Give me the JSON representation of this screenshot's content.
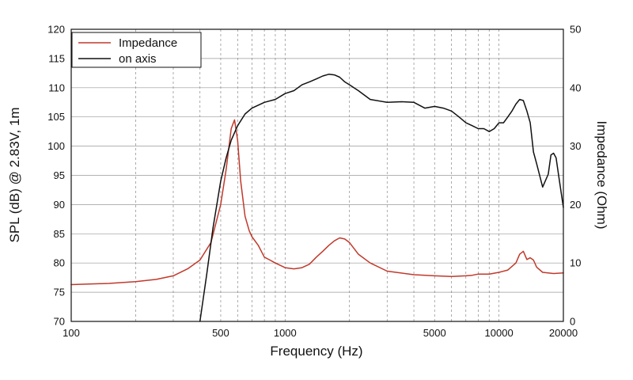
{
  "chart_data": {
    "type": "line",
    "xlabel": "Frequency (Hz)",
    "ylabel": "SPL (dB) @ 2.83V, 1m",
    "y2label": "Impedance (Ohm)",
    "xscale": "log",
    "xlim": [
      100,
      20000
    ],
    "ylim": [
      70,
      120
    ],
    "y2lim": [
      0,
      50
    ],
    "grid": true,
    "legend_position": "top-left",
    "x_tick_labels": [
      "100",
      "500",
      "1000",
      "5000",
      "10000",
      "20000"
    ],
    "x_tick_values": [
      100,
      500,
      1000,
      5000,
      10000,
      20000
    ],
    "y_ticks": [
      70,
      75,
      80,
      85,
      90,
      95,
      100,
      105,
      110,
      115,
      120
    ],
    "y2_ticks": [
      0,
      10,
      20,
      30,
      40,
      50
    ],
    "series": [
      {
        "name": "Impedance",
        "axis": "right",
        "color": "#c0392b",
        "x": [
          100,
          150,
          200,
          250,
          300,
          350,
          400,
          450,
          500,
          530,
          560,
          580,
          600,
          620,
          650,
          680,
          700,
          750,
          800,
          850,
          900,
          1000,
          1100,
          1200,
          1300,
          1400,
          1500,
          1600,
          1700,
          1800,
          1900,
          2000,
          2200,
          2500,
          3000,
          4000,
          5000,
          6000,
          7000,
          7500,
          8000,
          9000,
          10000,
          11000,
          12000,
          12500,
          13000,
          13500,
          14000,
          14500,
          15000,
          16000,
          18000,
          20000
        ],
        "y": [
          6.3,
          6.5,
          6.8,
          7.2,
          7.8,
          9,
          10.5,
          13.5,
          20,
          26,
          33,
          34.5,
          31,
          24,
          18,
          15.5,
          14.5,
          13,
          11,
          10.5,
          10,
          9.2,
          9,
          9.2,
          9.8,
          11,
          12,
          13,
          13.8,
          14.3,
          14.1,
          13.5,
          11.5,
          10,
          8.6,
          8,
          7.8,
          7.7,
          7.8,
          7.9,
          8.1,
          8.1,
          8.4,
          8.8,
          10,
          11.5,
          12,
          10.6,
          10.9,
          10.5,
          9.3,
          8.4,
          8.2,
          8.3
        ]
      },
      {
        "name": "on axis",
        "axis": "left",
        "color": "#111111",
        "x": [
          400,
          430,
          460,
          500,
          530,
          560,
          600,
          650,
          700,
          800,
          900,
          1000,
          1100,
          1200,
          1300,
          1400,
          1500,
          1600,
          1700,
          1800,
          1900,
          2000,
          2200,
          2500,
          3000,
          3500,
          4000,
          4500,
          5000,
          5500,
          6000,
          6500,
          7000,
          7500,
          8000,
          8500,
          9000,
          9500,
          10000,
          10500,
          11000,
          11500,
          12000,
          12500,
          13000,
          13500,
          14000,
          14500,
          15000,
          16000,
          17000,
          17500,
          18000,
          18500,
          19000,
          20000
        ],
        "y": [
          70,
          78,
          86,
          94,
          98,
          101,
          103.5,
          105.5,
          106.5,
          107.5,
          108,
          109,
          109.5,
          110.5,
          111,
          111.5,
          112,
          112.3,
          112.2,
          111.8,
          111,
          110.5,
          109.5,
          108,
          107.5,
          107.6,
          107.5,
          106.5,
          106.8,
          106.5,
          106,
          105,
          104,
          103.5,
          103,
          103,
          102.5,
          103,
          104,
          104,
          105,
          106,
          107.2,
          108,
          107.8,
          106,
          104,
          99,
          97,
          93,
          95.2,
          98.5,
          98.8,
          98,
          95,
          89.5
        ]
      }
    ]
  }
}
